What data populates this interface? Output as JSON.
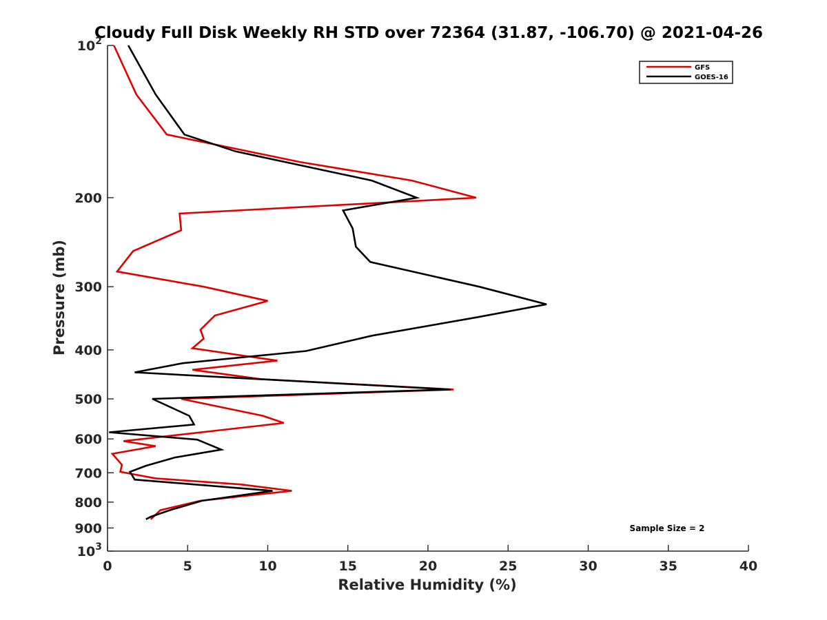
{
  "chart_data": {
    "type": "line",
    "title": "Cloudy Full Disk Weekly RH STD over 72364 (31.87, -106.70) @ 2021-04-26",
    "xlabel": "Relative Humidity (%)",
    "ylabel": "Pressure (mb)",
    "xlim": [
      0,
      40
    ],
    "ylim": [
      1000,
      100
    ],
    "yscale": "log",
    "xticks": [
      "0",
      "5",
      "10",
      "15",
      "20",
      "25",
      "30",
      "35",
      "40"
    ],
    "yticks": [
      {
        "value": 100,
        "base": "10",
        "exp": "2"
      },
      {
        "value": 200,
        "label": "200"
      },
      {
        "value": 300,
        "label": "300"
      },
      {
        "value": 400,
        "label": "400"
      },
      {
        "value": 500,
        "label": "500"
      },
      {
        "value": 600,
        "label": "600"
      },
      {
        "value": 700,
        "label": "700"
      },
      {
        "value": 800,
        "label": "800"
      },
      {
        "value": 900,
        "label": "900"
      },
      {
        "value": 1000,
        "base": "10",
        "exp": "3"
      }
    ],
    "grid": false,
    "legend_position": "top-right",
    "annotation": "Sample Size = 2",
    "series": [
      {
        "name": "GFS",
        "color": "#e00000",
        "points": [
          [
            0.4,
            100
          ],
          [
            1.8,
            125
          ],
          [
            3.7,
            150
          ],
          [
            12.0,
            170
          ],
          [
            19.0,
            185
          ],
          [
            23.0,
            200
          ],
          [
            4.5,
            215
          ],
          [
            4.6,
            232
          ],
          [
            1.6,
            255
          ],
          [
            0.6,
            280
          ],
          [
            6.0,
            300
          ],
          [
            10.0,
            320
          ],
          [
            6.7,
            342
          ],
          [
            5.8,
            365
          ],
          [
            6.0,
            380
          ],
          [
            5.3,
            397
          ],
          [
            10.6,
            420
          ],
          [
            5.3,
            438
          ],
          [
            9.6,
            457
          ],
          [
            21.6,
            479
          ],
          [
            4.6,
            500
          ],
          [
            9.7,
            540
          ],
          [
            11.0,
            558
          ],
          [
            1.0,
            606
          ],
          [
            3.0,
            620
          ],
          [
            0.3,
            642
          ],
          [
            0.9,
            675
          ],
          [
            0.8,
            697
          ],
          [
            3.0,
            718
          ],
          [
            8.3,
            738
          ],
          [
            11.5,
            760
          ],
          [
            5.8,
            795
          ],
          [
            3.3,
            830
          ],
          [
            2.7,
            865
          ]
        ]
      },
      {
        "name": "GOES-16",
        "color": "#000000",
        "points": [
          [
            1.3,
            100
          ],
          [
            3.0,
            125
          ],
          [
            4.8,
            150
          ],
          [
            8.0,
            162
          ],
          [
            16.5,
            185
          ],
          [
            19.3,
            200
          ],
          [
            14.7,
            212
          ],
          [
            15.3,
            230
          ],
          [
            15.5,
            250
          ],
          [
            16.4,
            268
          ],
          [
            23.2,
            300
          ],
          [
            27.4,
            325
          ],
          [
            23.0,
            345
          ],
          [
            16.5,
            375
          ],
          [
            12.4,
            402
          ],
          [
            4.7,
            425
          ],
          [
            1.7,
            443
          ],
          [
            21.4,
            479
          ],
          [
            2.8,
            500
          ],
          [
            5.1,
            540
          ],
          [
            5.4,
            562
          ],
          [
            0.1,
            582
          ],
          [
            5.6,
            602
          ],
          [
            7.1,
            630
          ],
          [
            4.2,
            653
          ],
          [
            2.4,
            678
          ],
          [
            1.4,
            697
          ],
          [
            1.7,
            722
          ],
          [
            10.3,
            760
          ],
          [
            5.9,
            795
          ],
          [
            4.0,
            828
          ],
          [
            2.7,
            855
          ],
          [
            2.4,
            865
          ]
        ]
      }
    ]
  }
}
